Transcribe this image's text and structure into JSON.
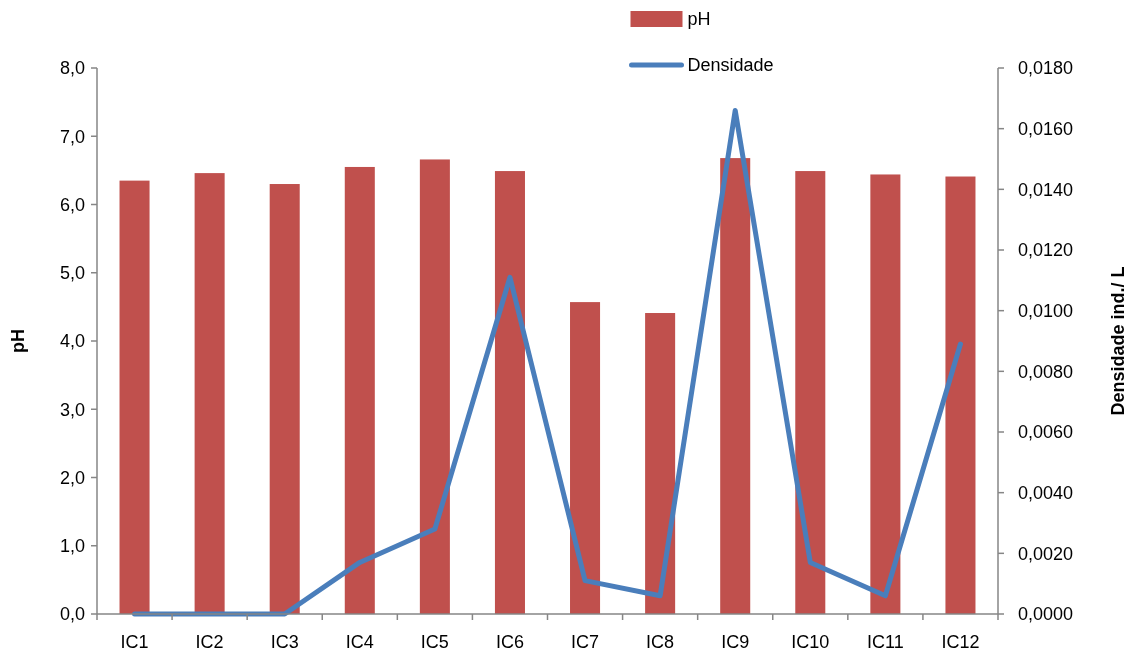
{
  "chart_data": {
    "type": "bar",
    "categories": [
      "IC1",
      "IC2",
      "IC3",
      "IC4",
      "IC5",
      "IC6",
      "IC7",
      "IC8",
      "IC9",
      "IC10",
      "IC11",
      "IC12"
    ],
    "series": [
      {
        "name": "pH",
        "color": "#c0504d",
        "values": [
          6.35,
          6.46,
          6.3,
          6.55,
          6.66,
          6.49,
          4.57,
          4.41,
          6.68,
          6.49,
          6.44,
          6.41
        ]
      },
      {
        "name": "Densidade",
        "type": "line",
        "axis": "y2",
        "color": "#4a7ebb",
        "values": [
          0,
          0,
          0,
          0.0017,
          0.0028,
          0.0111,
          0.0011,
          0.0006,
          0.0166,
          0.0017,
          0.0006,
          0.0089
        ]
      }
    ],
    "ylabel": "pH",
    "y2label": "Densidade ind./ L",
    "ylim": [
      0,
      8
    ],
    "yticks": [
      {
        "value": 0,
        "label": "0,0"
      },
      {
        "value": 1,
        "label": "1,0"
      },
      {
        "value": 2,
        "label": "2,0"
      },
      {
        "value": 3,
        "label": "3,0"
      },
      {
        "value": 4,
        "label": "4,0"
      },
      {
        "value": 5,
        "label": "5,0"
      },
      {
        "value": 6,
        "label": "6,0"
      },
      {
        "value": 7,
        "label": "7,0"
      },
      {
        "value": 8,
        "label": "8,0"
      }
    ],
    "y2lim": [
      0,
      0.018
    ],
    "y2ticks": [
      {
        "value": 0,
        "label": "0,0000"
      },
      {
        "value": 0.002,
        "label": "0,0020"
      },
      {
        "value": 0.004,
        "label": "0,0040"
      },
      {
        "value": 0.006,
        "label": "0,0060"
      },
      {
        "value": 0.008,
        "label": "0,0080"
      },
      {
        "value": 0.01,
        "label": "0,0100"
      },
      {
        "value": 0.012,
        "label": "0,0120"
      },
      {
        "value": 0.014,
        "label": "0,0140"
      },
      {
        "value": 0.016,
        "label": "0,0160"
      },
      {
        "value": 0.018,
        "label": "0,0180"
      }
    ],
    "legend": "top",
    "line_style": "solid"
  }
}
